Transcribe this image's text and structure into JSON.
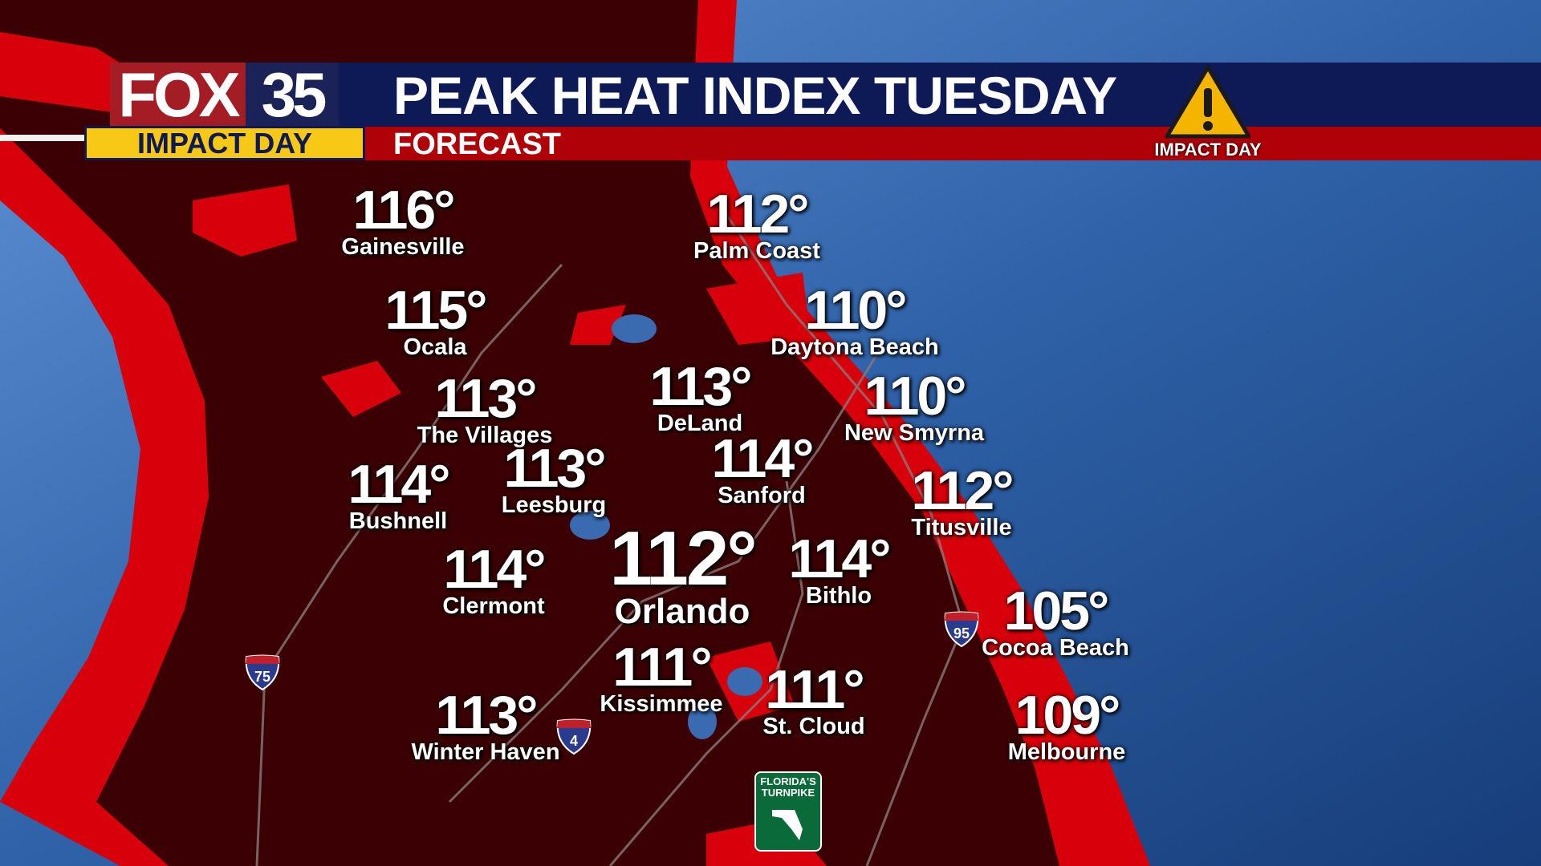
{
  "header": {
    "logo_text": "FOX 35",
    "logo_fox": "FOX",
    "logo_num": "35",
    "brand_badge": "IMPACT DAY",
    "title": "PEAK HEAT INDEX TUESDAY",
    "subtitle": "FORECAST",
    "alert_icon": "warning-triangle-icon",
    "alert_label": "IMPACT DAY"
  },
  "colors": {
    "land": "#3a0004",
    "heat_band": "#d8000a",
    "ocean": "#2f62a8",
    "header_navy": "#0d1a55",
    "header_red": "#b00008",
    "badge_yellow": "#f7c815"
  },
  "highways": [
    {
      "label": "75",
      "type": "interstate"
    },
    {
      "label": "4",
      "type": "interstate"
    },
    {
      "label": "95",
      "type": "interstate"
    },
    {
      "label": "FLORIDA'S TURNPIKE",
      "type": "turnpike"
    }
  ],
  "cities": [
    {
      "name": "Gainesville",
      "temp": "116°"
    },
    {
      "name": "Palm Coast",
      "temp": "112°"
    },
    {
      "name": "Ocala",
      "temp": "115°"
    },
    {
      "name": "Daytona Beach",
      "temp": "110°"
    },
    {
      "name": "The Villages",
      "temp": "113°"
    },
    {
      "name": "DeLand",
      "temp": "113°"
    },
    {
      "name": "New Smyrna",
      "temp": "110°"
    },
    {
      "name": "Bushnell",
      "temp": "114°"
    },
    {
      "name": "Leesburg",
      "temp": "113°"
    },
    {
      "name": "Sanford",
      "temp": "114°"
    },
    {
      "name": "Titusville",
      "temp": "112°"
    },
    {
      "name": "Orlando",
      "temp": "112°"
    },
    {
      "name": "Bithlo",
      "temp": "114°"
    },
    {
      "name": "Clermont",
      "temp": "114°"
    },
    {
      "name": "Cocoa Beach",
      "temp": "105°"
    },
    {
      "name": "Kissimmee",
      "temp": "111°"
    },
    {
      "name": "St. Cloud",
      "temp": "111°"
    },
    {
      "name": "Winter Haven",
      "temp": "113°"
    },
    {
      "name": "Melbourne",
      "temp": "109°"
    }
  ]
}
